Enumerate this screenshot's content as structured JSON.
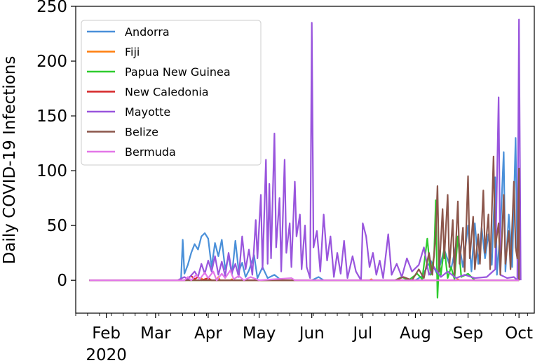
{
  "chart_data": {
    "type": "line",
    "title": "",
    "xlabel": "",
    "ylabel": "Daily COVID-19 Infections",
    "ylim": [
      -30,
      250
    ],
    "xlim": [
      "2020-01-14",
      "2020-10-10"
    ],
    "yticks": [
      0,
      50,
      100,
      150,
      200,
      250
    ],
    "xticks": [
      {
        "date": "2020-02-01",
        "label": "Feb"
      },
      {
        "date": "2020-03-01",
        "label": "Mar"
      },
      {
        "date": "2020-04-01",
        "label": "Apr"
      },
      {
        "date": "2020-05-01",
        "label": "May"
      },
      {
        "date": "2020-06-01",
        "label": "Jun"
      },
      {
        "date": "2020-07-01",
        "label": "Jul"
      },
      {
        "date": "2020-08-01",
        "label": "Aug"
      },
      {
        "date": "2020-09-01",
        "label": "Sep"
      },
      {
        "date": "2020-10-01",
        "label": "Oct"
      }
    ],
    "year_label": "2020",
    "grid": false,
    "legend_position": "upper-left",
    "series": [
      {
        "name": "Andorra",
        "color": "#4a90d9",
        "points": [
          [
            "2020-01-22",
            0
          ],
          [
            "2020-03-14",
            0
          ],
          [
            "2020-03-16",
            1
          ],
          [
            "2020-03-17",
            37
          ],
          [
            "2020-03-18",
            6
          ],
          [
            "2020-03-20",
            14
          ],
          [
            "2020-03-22",
            25
          ],
          [
            "2020-03-24",
            33
          ],
          [
            "2020-03-26",
            28
          ],
          [
            "2020-03-28",
            40
          ],
          [
            "2020-03-30",
            43
          ],
          [
            "2020-04-01",
            38
          ],
          [
            "2020-04-03",
            12
          ],
          [
            "2020-04-05",
            34
          ],
          [
            "2020-04-07",
            22
          ],
          [
            "2020-04-09",
            37
          ],
          [
            "2020-04-11",
            10
          ],
          [
            "2020-04-13",
            22
          ],
          [
            "2020-04-15",
            5
          ],
          [
            "2020-04-17",
            36
          ],
          [
            "2020-04-19",
            8
          ],
          [
            "2020-04-21",
            16
          ],
          [
            "2020-04-23",
            3
          ],
          [
            "2020-04-25",
            9
          ],
          [
            "2020-04-28",
            23
          ],
          [
            "2020-04-30",
            2
          ],
          [
            "2020-05-03",
            12
          ],
          [
            "2020-05-06",
            2
          ],
          [
            "2020-05-10",
            5
          ],
          [
            "2020-05-14",
            0
          ],
          [
            "2020-06-01",
            0
          ],
          [
            "2020-06-05",
            3
          ],
          [
            "2020-06-08",
            0
          ],
          [
            "2020-08-01",
            0
          ],
          [
            "2020-08-05",
            4
          ],
          [
            "2020-08-10",
            18
          ],
          [
            "2020-08-14",
            5
          ],
          [
            "2020-08-18",
            28
          ],
          [
            "2020-08-22",
            10
          ],
          [
            "2020-08-26",
            40
          ],
          [
            "2020-08-29",
            12
          ],
          [
            "2020-09-01",
            50
          ],
          [
            "2020-09-03",
            8
          ],
          [
            "2020-09-05",
            52
          ],
          [
            "2020-09-07",
            15
          ],
          [
            "2020-09-09",
            48
          ],
          [
            "2020-09-11",
            20
          ],
          [
            "2020-09-13",
            42
          ],
          [
            "2020-09-15",
            14
          ],
          [
            "2020-09-17",
            94
          ],
          [
            "2020-09-18",
            5
          ],
          [
            "2020-09-20",
            45
          ],
          [
            "2020-09-22",
            117
          ],
          [
            "2020-09-23",
            8
          ],
          [
            "2020-09-25",
            60
          ],
          [
            "2020-09-27",
            12
          ],
          [
            "2020-09-29",
            130
          ],
          [
            "2020-09-30",
            20
          ],
          [
            "2020-10-01",
            0
          ]
        ]
      },
      {
        "name": "Fiji",
        "color": "#ff7f0e",
        "points": [
          [
            "2020-01-22",
            0
          ],
          [
            "2020-03-19",
            0
          ],
          [
            "2020-03-20",
            1
          ],
          [
            "2020-03-21",
            0
          ],
          [
            "2020-03-27",
            0
          ],
          [
            "2020-03-28",
            2
          ],
          [
            "2020-03-29",
            0
          ],
          [
            "2020-04-06",
            0
          ],
          [
            "2020-04-07",
            3
          ],
          [
            "2020-04-08",
            0
          ],
          [
            "2020-04-14",
            0
          ],
          [
            "2020-04-15",
            1
          ],
          [
            "2020-04-16",
            0
          ],
          [
            "2020-07-05",
            0
          ],
          [
            "2020-07-06",
            1
          ],
          [
            "2020-07-07",
            0
          ],
          [
            "2020-08-25",
            0
          ],
          [
            "2020-08-26",
            1
          ],
          [
            "2020-08-27",
            0
          ],
          [
            "2020-10-01",
            0
          ]
        ]
      },
      {
        "name": "Papua New Guinea",
        "color": "#2ecc2e",
        "points": [
          [
            "2020-01-22",
            0
          ],
          [
            "2020-07-20",
            0
          ],
          [
            "2020-07-24",
            3
          ],
          [
            "2020-07-28",
            0
          ],
          [
            "2020-08-02",
            6
          ],
          [
            "2020-08-05",
            1
          ],
          [
            "2020-08-08",
            38
          ],
          [
            "2020-08-10",
            5
          ],
          [
            "2020-08-12",
            22
          ],
          [
            "2020-08-13",
            73
          ],
          [
            "2020-08-14",
            -16
          ],
          [
            "2020-08-15",
            18
          ],
          [
            "2020-08-16",
            5
          ],
          [
            "2020-08-18",
            30
          ],
          [
            "2020-08-20",
            2
          ],
          [
            "2020-08-22",
            12
          ],
          [
            "2020-08-24",
            1
          ],
          [
            "2020-08-26",
            40
          ],
          [
            "2020-08-28",
            3
          ],
          [
            "2020-09-01",
            6
          ],
          [
            "2020-09-05",
            0
          ],
          [
            "2020-10-01",
            0
          ]
        ]
      },
      {
        "name": "New Caledonia",
        "color": "#d62728",
        "points": [
          [
            "2020-01-22",
            0
          ],
          [
            "2020-03-18",
            0
          ],
          [
            "2020-03-20",
            2
          ],
          [
            "2020-03-22",
            4
          ],
          [
            "2020-03-24",
            1
          ],
          [
            "2020-03-26",
            3
          ],
          [
            "2020-03-28",
            0
          ],
          [
            "2020-04-01",
            2
          ],
          [
            "2020-04-03",
            0
          ],
          [
            "2020-10-01",
            0
          ]
        ]
      },
      {
        "name": "Mayotte",
        "color": "#9955dd",
        "points": [
          [
            "2020-01-22",
            0
          ],
          [
            "2020-03-14",
            0
          ],
          [
            "2020-03-18",
            3
          ],
          [
            "2020-03-20",
            1
          ],
          [
            "2020-03-24",
            8
          ],
          [
            "2020-03-26",
            3
          ],
          [
            "2020-03-28",
            15
          ],
          [
            "2020-03-30",
            6
          ],
          [
            "2020-04-01",
            18
          ],
          [
            "2020-04-03",
            8
          ],
          [
            "2020-04-05",
            22
          ],
          [
            "2020-04-07",
            5
          ],
          [
            "2020-04-09",
            17
          ],
          [
            "2020-04-11",
            4
          ],
          [
            "2020-04-13",
            25
          ],
          [
            "2020-04-15",
            7
          ],
          [
            "2020-04-17",
            15
          ],
          [
            "2020-04-19",
            3
          ],
          [
            "2020-04-21",
            40
          ],
          [
            "2020-04-23",
            10
          ],
          [
            "2020-04-25",
            28
          ],
          [
            "2020-04-27",
            5
          ],
          [
            "2020-04-29",
            55
          ],
          [
            "2020-04-30",
            20
          ],
          [
            "2020-05-02",
            78
          ],
          [
            "2020-05-03",
            10
          ],
          [
            "2020-05-05",
            110
          ],
          [
            "2020-05-06",
            15
          ],
          [
            "2020-05-07",
            88
          ],
          [
            "2020-05-08",
            20
          ],
          [
            "2020-05-10",
            134
          ],
          [
            "2020-05-11",
            30
          ],
          [
            "2020-05-13",
            75
          ],
          [
            "2020-05-14",
            8
          ],
          [
            "2020-05-16",
            110
          ],
          [
            "2020-05-17",
            25
          ],
          [
            "2020-05-19",
            52
          ],
          [
            "2020-05-20",
            12
          ],
          [
            "2020-05-22",
            90
          ],
          [
            "2020-05-23",
            40
          ],
          [
            "2020-05-25",
            60
          ],
          [
            "2020-05-26",
            10
          ],
          [
            "2020-05-28",
            50
          ],
          [
            "2020-05-29",
            12
          ],
          [
            "2020-05-31",
            2
          ],
          [
            "2020-06-01",
            235
          ],
          [
            "2020-06-02",
            30
          ],
          [
            "2020-06-04",
            45
          ],
          [
            "2020-06-06",
            8
          ],
          [
            "2020-06-08",
            60
          ],
          [
            "2020-06-10",
            18
          ],
          [
            "2020-06-12",
            40
          ],
          [
            "2020-06-14",
            3
          ],
          [
            "2020-06-16",
            25
          ],
          [
            "2020-06-18",
            6
          ],
          [
            "2020-06-20",
            36
          ],
          [
            "2020-06-22",
            2
          ],
          [
            "2020-06-25",
            22
          ],
          [
            "2020-06-27",
            8
          ],
          [
            "2020-06-30",
            0
          ],
          [
            "2020-07-01",
            52
          ],
          [
            "2020-07-03",
            40
          ],
          [
            "2020-07-05",
            12
          ],
          [
            "2020-07-07",
            25
          ],
          [
            "2020-07-09",
            5
          ],
          [
            "2020-07-11",
            18
          ],
          [
            "2020-07-13",
            2
          ],
          [
            "2020-07-16",
            42
          ],
          [
            "2020-07-18",
            5
          ],
          [
            "2020-07-21",
            15
          ],
          [
            "2020-07-24",
            3
          ],
          [
            "2020-07-27",
            20
          ],
          [
            "2020-07-30",
            8
          ],
          [
            "2020-08-03",
            14
          ],
          [
            "2020-08-06",
            30
          ],
          [
            "2020-08-09",
            5
          ],
          [
            "2020-08-12",
            12
          ],
          [
            "2020-08-16",
            3
          ],
          [
            "2020-08-20",
            8
          ],
          [
            "2020-08-25",
            2
          ],
          [
            "2020-08-30",
            5
          ],
          [
            "2020-09-05",
            2
          ],
          [
            "2020-09-12",
            3
          ],
          [
            "2020-09-17",
            10
          ],
          [
            "2020-09-19",
            167
          ],
          [
            "2020-09-20",
            5
          ],
          [
            "2020-09-24",
            2
          ],
          [
            "2020-09-28",
            3
          ],
          [
            "2020-09-30",
            0
          ],
          [
            "2020-10-01",
            238
          ],
          [
            "2020-10-02",
            0
          ]
        ]
      },
      {
        "name": "Belize",
        "color": "#8c564b",
        "points": [
          [
            "2020-01-22",
            0
          ],
          [
            "2020-07-20",
            0
          ],
          [
            "2020-07-25",
            3
          ],
          [
            "2020-07-30",
            0
          ],
          [
            "2020-08-03",
            10
          ],
          [
            "2020-08-06",
            2
          ],
          [
            "2020-08-09",
            25
          ],
          [
            "2020-08-11",
            5
          ],
          [
            "2020-08-13",
            42
          ],
          [
            "2020-08-14",
            86
          ],
          [
            "2020-08-15",
            8
          ],
          [
            "2020-08-17",
            65
          ],
          [
            "2020-08-18",
            20
          ],
          [
            "2020-08-20",
            78
          ],
          [
            "2020-08-21",
            12
          ],
          [
            "2020-08-23",
            55
          ],
          [
            "2020-08-24",
            5
          ],
          [
            "2020-08-26",
            72
          ],
          [
            "2020-08-27",
            15
          ],
          [
            "2020-08-29",
            48
          ],
          [
            "2020-08-30",
            8
          ],
          [
            "2020-09-01",
            95
          ],
          [
            "2020-09-02",
            20
          ],
          [
            "2020-09-04",
            58
          ],
          [
            "2020-09-05",
            10
          ],
          [
            "2020-09-07",
            42
          ],
          [
            "2020-09-08",
            15
          ],
          [
            "2020-09-10",
            82
          ],
          [
            "2020-09-11",
            25
          ],
          [
            "2020-09-13",
            60
          ],
          [
            "2020-09-14",
            10
          ],
          [
            "2020-09-16",
            113
          ],
          [
            "2020-09-17",
            30
          ],
          [
            "2020-09-19",
            52
          ],
          [
            "2020-09-20",
            5
          ],
          [
            "2020-09-22",
            78
          ],
          [
            "2020-09-23",
            15
          ],
          [
            "2020-09-25",
            45
          ],
          [
            "2020-09-26",
            10
          ],
          [
            "2020-09-28",
            90
          ],
          [
            "2020-09-29",
            30
          ],
          [
            "2020-09-30",
            20
          ],
          [
            "2020-10-01",
            102
          ],
          [
            "2020-10-01",
            0
          ]
        ]
      },
      {
        "name": "Bermuda",
        "color": "#e377e8",
        "points": [
          [
            "2020-01-22",
            0
          ],
          [
            "2020-03-18",
            0
          ],
          [
            "2020-03-20",
            3
          ],
          [
            "2020-03-22",
            0
          ],
          [
            "2020-03-25",
            5
          ],
          [
            "2020-03-27",
            1
          ],
          [
            "2020-03-30",
            7
          ],
          [
            "2020-04-01",
            2
          ],
          [
            "2020-04-04",
            8
          ],
          [
            "2020-04-06",
            0
          ],
          [
            "2020-04-09",
            6
          ],
          [
            "2020-04-11",
            2
          ],
          [
            "2020-04-14",
            9
          ],
          [
            "2020-04-16",
            1
          ],
          [
            "2020-04-19",
            4
          ],
          [
            "2020-04-22",
            0
          ],
          [
            "2020-04-26",
            3
          ],
          [
            "2020-05-01",
            0
          ],
          [
            "2020-05-20",
            2
          ],
          [
            "2020-05-22",
            0
          ],
          [
            "2020-10-01",
            0
          ]
        ]
      }
    ]
  }
}
